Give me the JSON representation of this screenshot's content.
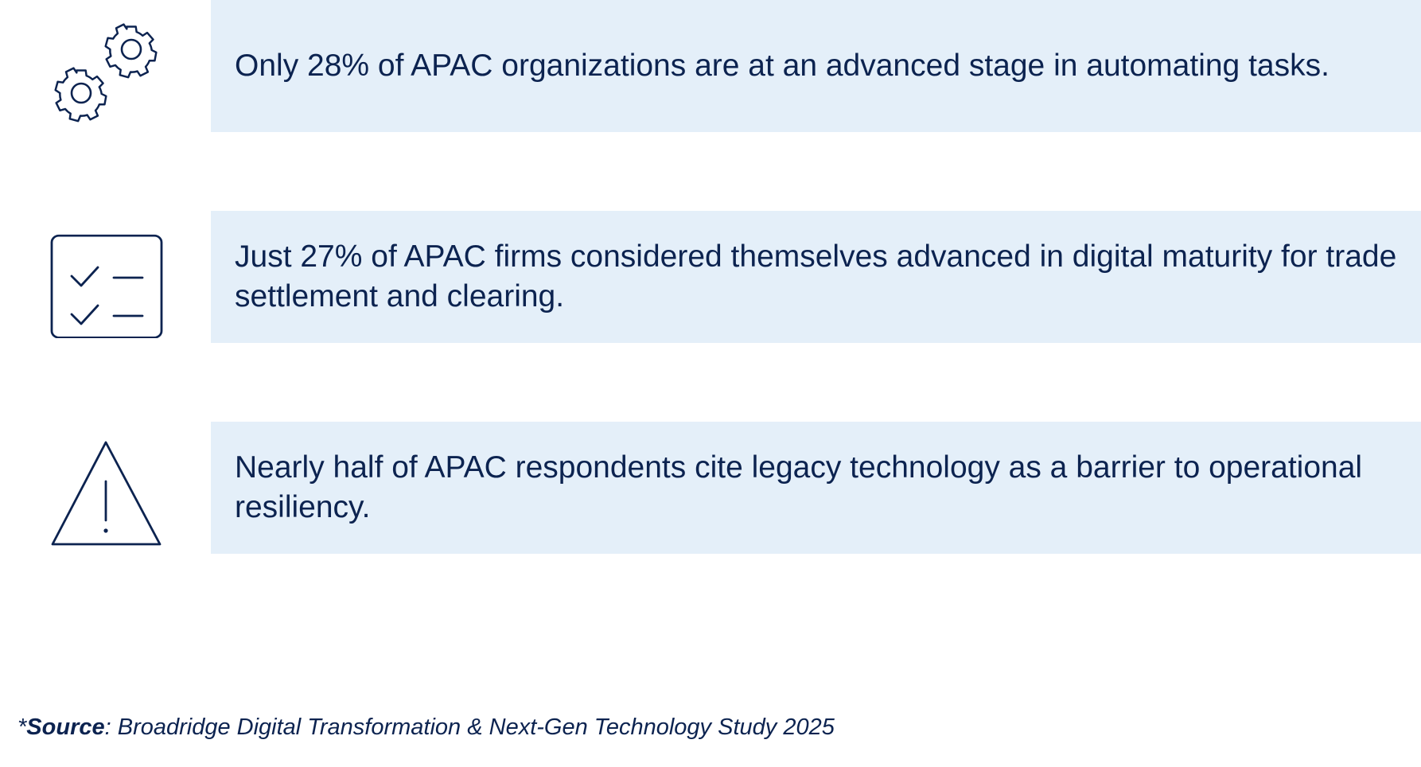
{
  "stats": [
    {
      "icon": "gears-icon",
      "text": "Only 28% of APAC organizations are at an advanced stage in automating tasks."
    },
    {
      "icon": "checklist-icon",
      "text": "Just 27% of APAC firms considered themselves advanced in digital maturity for trade settlement and clearing."
    },
    {
      "icon": "warning-icon",
      "text": "Nearly half of APAC respondents cite legacy technology as a barrier to operational resiliency."
    }
  ],
  "footer": {
    "prefix": "*",
    "label": "Source",
    "text": ": Broadridge Digital Transformation & Next-Gen Technology Study 2025"
  },
  "colors": {
    "text": "#0c2350",
    "panel_background": "#e4eff9",
    "background": "#ffffff"
  }
}
